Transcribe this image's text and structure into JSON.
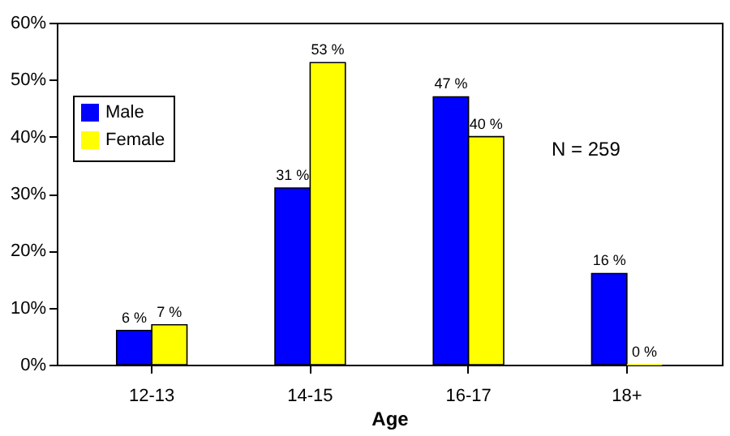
{
  "chart_data": {
    "type": "bar",
    "xlabel": "Age",
    "categories": [
      "12-13",
      "14-15",
      "16-17",
      "18+"
    ],
    "series": [
      {
        "name": "Male",
        "color": "#0000ff",
        "values": [
          6,
          31,
          47,
          16
        ],
        "value_labels": [
          "6 %",
          "31 %",
          "47 %",
          "16 %"
        ]
      },
      {
        "name": "Female",
        "color": "#ffff00",
        "values": [
          7,
          53,
          40,
          0
        ],
        "value_labels": [
          "7 %",
          "53 %",
          "40 %",
          "0 %"
        ]
      }
    ],
    "ylim": [
      0,
      60
    ],
    "yticks": [
      {
        "value": 0,
        "label": "0%"
      },
      {
        "value": 10,
        "label": "10%"
      },
      {
        "value": 20,
        "label": "20%"
      },
      {
        "value": 30,
        "label": "30%"
      },
      {
        "value": 40,
        "label": "40%"
      },
      {
        "value": 50,
        "label": "50%"
      },
      {
        "value": 60,
        "label": "60%"
      }
    ],
    "annotations": [
      "N = 259"
    ],
    "legend": "top left",
    "grid": false
  }
}
